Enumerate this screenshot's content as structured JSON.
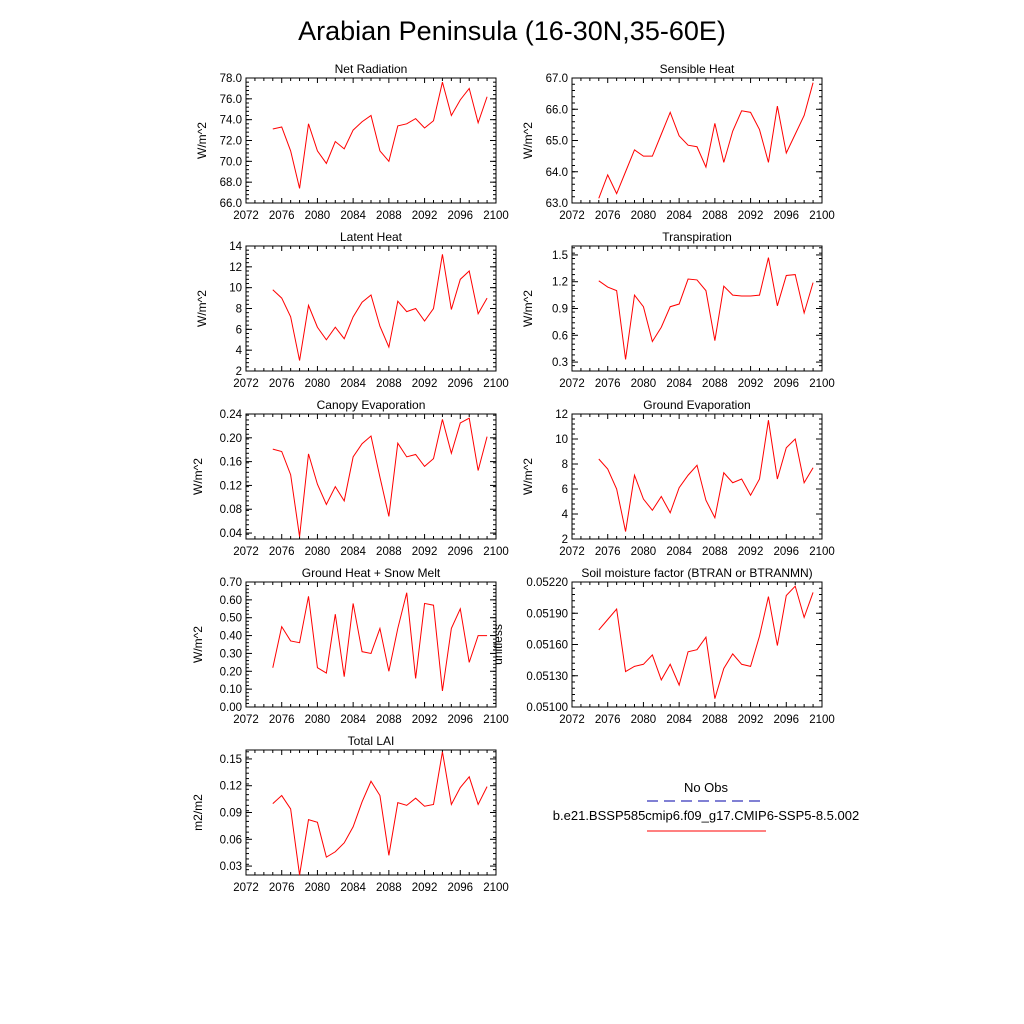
{
  "title": "Arabian Peninsula (16-30N,35-60E)",
  "colors": {
    "model": "#ff0000",
    "obs": "#0000aa",
    "axis": "#000000"
  },
  "legend": {
    "obs_label": "No Obs",
    "model_label": "b.e21.BSSP585cmip6.f09_g17.CMIP6-SSP5-8.5.002"
  },
  "chart_data": [
    {
      "type": "line",
      "title": "Net Radiation",
      "ylabel": "W/m^2",
      "xlim": [
        2072,
        2100
      ],
      "xticks": [
        2072,
        2076,
        2080,
        2084,
        2088,
        2092,
        2096,
        2100
      ],
      "ylim": [
        66.0,
        78.0
      ],
      "yticks": [
        66.0,
        68.0,
        70.0,
        72.0,
        74.0,
        76.0,
        78.0
      ],
      "ydec": 1,
      "series": [
        {
          "x": [
            2075,
            2076,
            2077,
            2078,
            2079,
            2080,
            2081,
            2082,
            2083,
            2084,
            2085,
            2086,
            2087,
            2088,
            2089,
            2090,
            2091,
            2092,
            2093,
            2094,
            2095,
            2096,
            2097,
            2098,
            2099
          ],
          "values": [
            73.1,
            73.3,
            71.0,
            67.4,
            73.6,
            71.0,
            69.8,
            71.9,
            71.2,
            73.0,
            73.8,
            74.4,
            71.0,
            70.0,
            73.4,
            73.6,
            74.1,
            73.2,
            73.9,
            77.6,
            74.4,
            75.9,
            77.0,
            73.7,
            76.2
          ]
        }
      ]
    },
    {
      "type": "line",
      "title": "Sensible Heat",
      "ylabel": "W/m^2",
      "xlim": [
        2072,
        2100
      ],
      "xticks": [
        2072,
        2076,
        2080,
        2084,
        2088,
        2092,
        2096,
        2100
      ],
      "ylim": [
        63.0,
        67.0
      ],
      "yticks": [
        63.0,
        64.0,
        65.0,
        66.0,
        67.0
      ],
      "ydec": 1,
      "series": [
        {
          "x": [
            2075,
            2076,
            2077,
            2078,
            2079,
            2080,
            2081,
            2082,
            2083,
            2084,
            2085,
            2086,
            2087,
            2088,
            2089,
            2090,
            2091,
            2092,
            2093,
            2094,
            2095,
            2096,
            2097,
            2098,
            2099
          ],
          "values": [
            63.15,
            63.9,
            63.3,
            64.0,
            64.7,
            64.5,
            64.5,
            65.2,
            65.9,
            65.15,
            64.85,
            64.8,
            64.15,
            65.55,
            64.3,
            65.3,
            65.95,
            65.9,
            65.35,
            64.3,
            66.1,
            64.6,
            65.2,
            65.8,
            66.85
          ]
        }
      ]
    },
    {
      "type": "line",
      "title": "Latent Heat",
      "ylabel": "W/m^2",
      "xlim": [
        2072,
        2100
      ],
      "xticks": [
        2072,
        2076,
        2080,
        2084,
        2088,
        2092,
        2096,
        2100
      ],
      "ylim": [
        2,
        14
      ],
      "yticks": [
        2,
        4,
        6,
        8,
        10,
        12,
        14
      ],
      "ydec": 0,
      "series": [
        {
          "x": [
            2075,
            2076,
            2077,
            2078,
            2079,
            2080,
            2081,
            2082,
            2083,
            2084,
            2085,
            2086,
            2087,
            2088,
            2089,
            2090,
            2091,
            2092,
            2093,
            2094,
            2095,
            2096,
            2097,
            2098,
            2099
          ],
          "values": [
            9.8,
            9.0,
            7.2,
            3.0,
            8.3,
            6.2,
            5.0,
            6.2,
            5.1,
            7.2,
            8.6,
            9.3,
            6.3,
            4.3,
            8.7,
            7.7,
            8.0,
            6.8,
            8.0,
            13.2,
            7.9,
            10.8,
            11.6,
            7.5,
            9.0
          ]
        }
      ]
    },
    {
      "type": "line",
      "title": "Transpiration",
      "ylabel": "W/m^2",
      "xlim": [
        2072,
        2100
      ],
      "xticks": [
        2072,
        2076,
        2080,
        2084,
        2088,
        2092,
        2096,
        2100
      ],
      "ylim": [
        0.2,
        1.6
      ],
      "yticks": [
        0.3,
        0.6,
        0.9,
        1.2,
        1.5
      ],
      "ydec": 1,
      "series": [
        {
          "x": [
            2075,
            2076,
            2077,
            2078,
            2079,
            2080,
            2081,
            2082,
            2083,
            2084,
            2085,
            2086,
            2087,
            2088,
            2089,
            2090,
            2091,
            2092,
            2093,
            2094,
            2095,
            2096,
            2097,
            2098,
            2099
          ],
          "values": [
            1.21,
            1.14,
            1.1,
            0.33,
            1.05,
            0.92,
            0.53,
            0.69,
            0.92,
            0.95,
            1.23,
            1.22,
            1.1,
            0.54,
            1.15,
            1.05,
            1.04,
            1.04,
            1.05,
            1.47,
            0.93,
            1.27,
            1.28,
            0.85,
            1.19
          ]
        }
      ]
    },
    {
      "type": "line",
      "title": "Canopy Evaporation",
      "ylabel": "W/m^2",
      "xlim": [
        2072,
        2100
      ],
      "xticks": [
        2072,
        2076,
        2080,
        2084,
        2088,
        2092,
        2096,
        2100
      ],
      "ylim": [
        0.03,
        0.24
      ],
      "yticks": [
        0.04,
        0.08,
        0.12,
        0.16,
        0.2,
        0.24
      ],
      "ydec": 2,
      "series": [
        {
          "x": [
            2075,
            2076,
            2077,
            2078,
            2079,
            2080,
            2081,
            2082,
            2083,
            2084,
            2085,
            2086,
            2087,
            2088,
            2089,
            2090,
            2091,
            2092,
            2093,
            2094,
            2095,
            2096,
            2097,
            2098,
            2099
          ],
          "values": [
            0.181,
            0.177,
            0.138,
            0.034,
            0.173,
            0.122,
            0.088,
            0.118,
            0.094,
            0.168,
            0.19,
            0.203,
            0.134,
            0.068,
            0.191,
            0.168,
            0.172,
            0.152,
            0.165,
            0.231,
            0.174,
            0.225,
            0.233,
            0.145,
            0.202
          ]
        }
      ]
    },
    {
      "type": "line",
      "title": "Ground Evaporation",
      "ylabel": "W/m^2",
      "xlim": [
        2072,
        2100
      ],
      "xticks": [
        2072,
        2076,
        2080,
        2084,
        2088,
        2092,
        2096,
        2100
      ],
      "ylim": [
        2,
        12
      ],
      "yticks": [
        2,
        4,
        6,
        8,
        10,
        12
      ],
      "ydec": 0,
      "series": [
        {
          "x": [
            2075,
            2076,
            2077,
            2078,
            2079,
            2080,
            2081,
            2082,
            2083,
            2084,
            2085,
            2086,
            2087,
            2088,
            2089,
            2090,
            2091,
            2092,
            2093,
            2094,
            2095,
            2096,
            2097,
            2098,
            2099
          ],
          "values": [
            8.4,
            7.6,
            6.0,
            2.6,
            7.1,
            5.2,
            4.3,
            5.4,
            4.1,
            6.1,
            7.1,
            7.9,
            5.1,
            3.7,
            7.3,
            6.5,
            6.8,
            5.5,
            6.8,
            11.5,
            6.8,
            9.3,
            10.0,
            6.5,
            7.7
          ]
        }
      ]
    },
    {
      "type": "line",
      "title": "Ground Heat + Snow Melt",
      "ylabel": "W/m^2",
      "xlim": [
        2072,
        2100
      ],
      "xticks": [
        2072,
        2076,
        2080,
        2084,
        2088,
        2092,
        2096,
        2100
      ],
      "ylim": [
        0.0,
        0.7
      ],
      "yticks": [
        0.0,
        0.1,
        0.2,
        0.3,
        0.4,
        0.5,
        0.6,
        0.7
      ],
      "ydec": 2,
      "series": [
        {
          "x": [
            2075,
            2076,
            2077,
            2078,
            2079,
            2080,
            2081,
            2082,
            2083,
            2084,
            2085,
            2086,
            2087,
            2088,
            2089,
            2090,
            2091,
            2092,
            2093,
            2094,
            2095,
            2096,
            2097,
            2098,
            2099
          ],
          "values": [
            0.22,
            0.45,
            0.37,
            0.36,
            0.62,
            0.22,
            0.19,
            0.52,
            0.17,
            0.58,
            0.31,
            0.3,
            0.44,
            0.2,
            0.44,
            0.64,
            0.16,
            0.58,
            0.57,
            0.09,
            0.44,
            0.55,
            0.25,
            0.4,
            0.4
          ]
        }
      ]
    },
    {
      "type": "line",
      "title": "Soil moisture factor (BTRAN or BTRANMN)",
      "ylabel": "unitless",
      "xlim": [
        2072,
        2100
      ],
      "xticks": [
        2072,
        2076,
        2080,
        2084,
        2088,
        2092,
        2096,
        2100
      ],
      "ylim": [
        0.051,
        0.0522
      ],
      "yticks": [
        0.051,
        0.0513,
        0.0516,
        0.0519,
        0.0522
      ],
      "ydec": 5,
      "series": [
        {
          "x": [
            2075,
            2076,
            2077,
            2078,
            2079,
            2080,
            2081,
            2082,
            2083,
            2084,
            2085,
            2086,
            2087,
            2088,
            2089,
            2090,
            2091,
            2092,
            2093,
            2094,
            2095,
            2096,
            2097,
            2098,
            2099
          ],
          "values": [
            0.05174,
            0.05184,
            0.05194,
            0.05134,
            0.05139,
            0.05141,
            0.0515,
            0.05126,
            0.05141,
            0.05121,
            0.05153,
            0.05155,
            0.05167,
            0.05108,
            0.05137,
            0.05151,
            0.05141,
            0.05139,
            0.05168,
            0.05206,
            0.05159,
            0.05207,
            0.05216,
            0.05186,
            0.0521
          ]
        }
      ]
    },
    {
      "type": "line",
      "title": "Total LAI",
      "ylabel": "m2/m2",
      "xlim": [
        2072,
        2100
      ],
      "xticks": [
        2072,
        2076,
        2080,
        2084,
        2088,
        2092,
        2096,
        2100
      ],
      "ylim": [
        0.02,
        0.16
      ],
      "yticks": [
        0.03,
        0.06,
        0.09,
        0.12,
        0.15
      ],
      "ydec": 2,
      "series": [
        {
          "x": [
            2075,
            2076,
            2077,
            2078,
            2079,
            2080,
            2081,
            2082,
            2083,
            2084,
            2085,
            2086,
            2087,
            2088,
            2089,
            2090,
            2091,
            2092,
            2093,
            2094,
            2095,
            2096,
            2097,
            2098,
            2099
          ],
          "values": [
            0.1,
            0.109,
            0.094,
            0.02,
            0.082,
            0.079,
            0.04,
            0.046,
            0.056,
            0.074,
            0.102,
            0.125,
            0.109,
            0.042,
            0.101,
            0.098,
            0.106,
            0.097,
            0.099,
            0.158,
            0.099,
            0.118,
            0.13,
            0.099,
            0.119
          ]
        }
      ]
    }
  ]
}
